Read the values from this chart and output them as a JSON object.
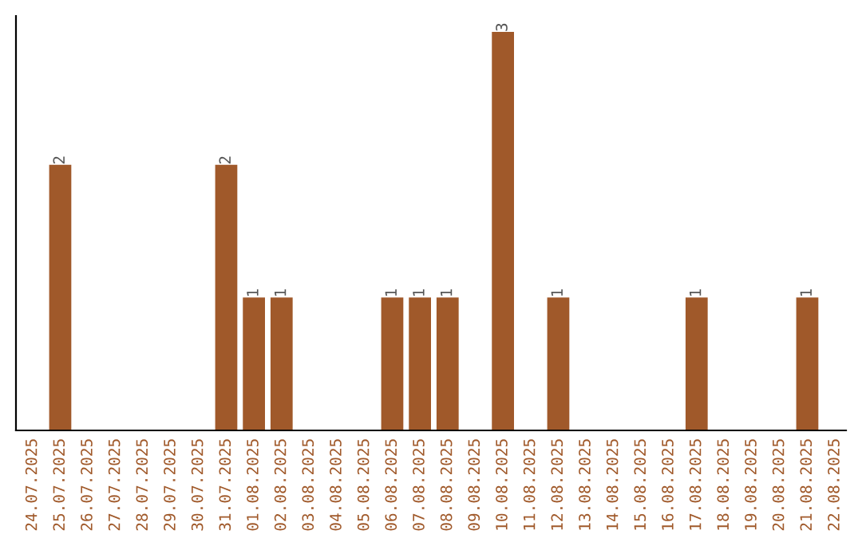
{
  "chart_data": {
    "type": "bar",
    "categories": [
      "24.07.2025",
      "25.07.2025",
      "26.07.2025",
      "27.07.2025",
      "28.07.2025",
      "29.07.2025",
      "30.07.2025",
      "31.07.2025",
      "01.08.2025",
      "02.08.2025",
      "03.08.2025",
      "04.08.2025",
      "05.08.2025",
      "06.08.2025",
      "07.08.2025",
      "08.08.2025",
      "09.08.2025",
      "10.08.2025",
      "11.08.2025",
      "12.08.2025",
      "13.08.2025",
      "14.08.2025",
      "15.08.2025",
      "16.08.2025",
      "17.08.2025",
      "18.08.2025",
      "19.08.2025",
      "20.08.2025",
      "21.08.2025",
      "22.08.2025"
    ],
    "values": [
      0,
      2,
      0,
      0,
      0,
      0,
      0,
      2,
      1,
      1,
      0,
      0,
      0,
      1,
      1,
      1,
      0,
      3,
      0,
      1,
      0,
      0,
      0,
      0,
      1,
      0,
      0,
      0,
      1,
      0
    ],
    "value_labels": [
      null,
      "2",
      null,
      null,
      null,
      null,
      null,
      "2",
      "1",
      "1",
      null,
      null,
      null,
      "1",
      "1",
      "1",
      null,
      "3",
      null,
      "1",
      null,
      null,
      null,
      null,
      "1",
      null,
      null,
      null,
      "1",
      null
    ],
    "color": "#a0592a",
    "tick_labels": "x",
    "grid": false
  }
}
